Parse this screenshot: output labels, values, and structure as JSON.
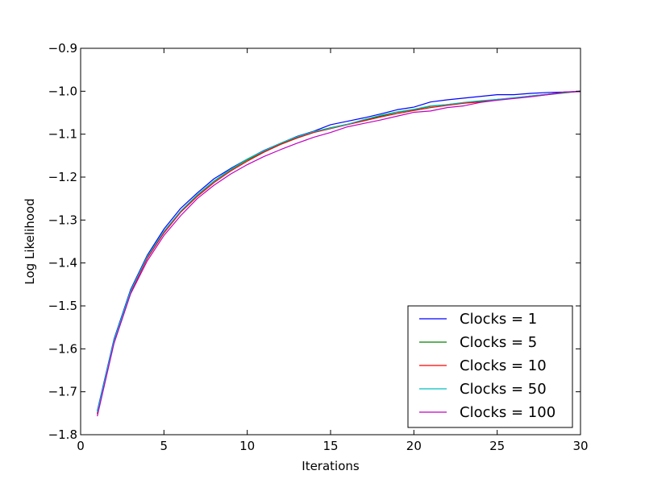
{
  "chart_data": {
    "type": "line",
    "title": "",
    "xlabel": "Iterations",
    "ylabel": "Log Likelihood",
    "xlim": [
      0,
      30
    ],
    "ylim": [
      -1.8,
      -0.9
    ],
    "xticks": [
      0,
      5,
      10,
      15,
      20,
      25,
      30
    ],
    "yticks": [
      -1.8,
      -1.7,
      -1.6,
      -1.5,
      -1.4,
      -1.3,
      -1.2,
      -1.1,
      -1.0,
      -0.9
    ],
    "xtick_labels": [
      "0",
      "5",
      "10",
      "15",
      "20",
      "25",
      "30"
    ],
    "ytick_labels": [
      "−1.8",
      "−1.7",
      "−1.6",
      "−1.5",
      "−1.4",
      "−1.3",
      "−1.2",
      "−1.1",
      "−1.0",
      "−0.9"
    ],
    "grid": false,
    "legend_position": "lower-right",
    "x": [
      1,
      2,
      3,
      4,
      5,
      6,
      7,
      8,
      9,
      10,
      11,
      12,
      13,
      14,
      15,
      16,
      17,
      18,
      19,
      20,
      21,
      22,
      23,
      24,
      25,
      26,
      27,
      28,
      29,
      30
    ],
    "series": [
      {
        "name": "Clocks = 1",
        "color": "#0000ff",
        "values": [
          -1.745,
          -1.578,
          -1.462,
          -1.382,
          -1.321,
          -1.273,
          -1.237,
          -1.204,
          -1.18,
          -1.158,
          -1.138,
          -1.121,
          -1.105,
          -1.093,
          -1.078,
          -1.07,
          -1.062,
          -1.053,
          -1.043,
          -1.037,
          -1.025,
          -1.02,
          -1.016,
          -1.012,
          -1.008,
          -1.008,
          -1.005,
          -1.003,
          -1.002,
          -1.0
        ]
      },
      {
        "name": "Clocks = 5",
        "color": "#008000",
        "values": [
          -1.75,
          -1.582,
          -1.466,
          -1.386,
          -1.327,
          -1.28,
          -1.242,
          -1.21,
          -1.183,
          -1.16,
          -1.14,
          -1.122,
          -1.107,
          -1.094,
          -1.085,
          -1.077,
          -1.067,
          -1.058,
          -1.049,
          -1.043,
          -1.035,
          -1.031,
          -1.027,
          -1.024,
          -1.019,
          -1.016,
          -1.012,
          -1.008,
          -1.004,
          -1.0
        ]
      },
      {
        "name": "Clocks = 10",
        "color": "#ff0000",
        "values": [
          -1.752,
          -1.585,
          -1.469,
          -1.389,
          -1.33,
          -1.282,
          -1.245,
          -1.213,
          -1.186,
          -1.163,
          -1.142,
          -1.124,
          -1.109,
          -1.096,
          -1.087,
          -1.078,
          -1.069,
          -1.06,
          -1.052,
          -1.045,
          -1.038,
          -1.033,
          -1.028,
          -1.025,
          -1.02,
          -1.016,
          -1.011,
          -1.007,
          -1.003,
          -1.0
        ]
      },
      {
        "name": "Clocks = 50",
        "color": "#00bfbf",
        "values": [
          -1.748,
          -1.581,
          -1.465,
          -1.385,
          -1.326,
          -1.279,
          -1.241,
          -1.209,
          -1.182,
          -1.158,
          -1.139,
          -1.121,
          -1.106,
          -1.094,
          -1.086,
          -1.077,
          -1.066,
          -1.056,
          -1.048,
          -1.042,
          -1.034,
          -1.031,
          -1.026,
          -1.022,
          -1.019,
          -1.015,
          -1.011,
          -1.007,
          -1.003,
          -1.0
        ]
      },
      {
        "name": "Clocks = 100",
        "color": "#bf00bf",
        "values": [
          -1.757,
          -1.588,
          -1.472,
          -1.395,
          -1.336,
          -1.29,
          -1.25,
          -1.219,
          -1.193,
          -1.171,
          -1.152,
          -1.136,
          -1.121,
          -1.107,
          -1.096,
          -1.083,
          -1.075,
          -1.067,
          -1.058,
          -1.049,
          -1.046,
          -1.038,
          -1.034,
          -1.026,
          -1.021,
          -1.017,
          -1.013,
          -1.008,
          -1.002,
          -1.001
        ]
      }
    ]
  }
}
